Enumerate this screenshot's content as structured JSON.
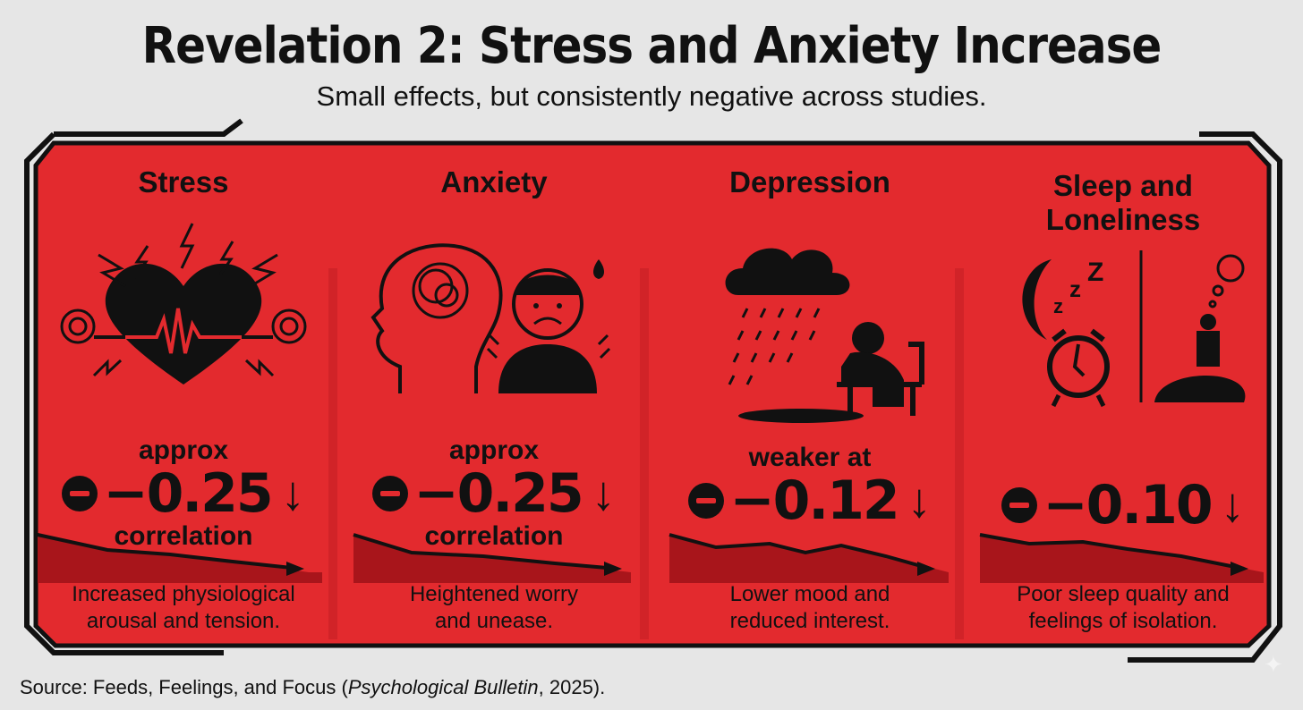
{
  "header": {
    "title": "Revelation 2: Stress and Anxiety Increase",
    "subtitle": "Small effects, but consistently negative across studies."
  },
  "colors": {
    "panel_red": "#e32a2e",
    "dark_red": "#a8151b",
    "ink": "#111111",
    "background": "#e6e6e6"
  },
  "panels": [
    {
      "title": "Stress",
      "icon": "stressed-heart-icon",
      "pre": "approx",
      "value": "−0.25",
      "post": "correlation",
      "trend_icon": "down-arrow-icon",
      "description_lines": [
        "Increased physiological",
        "arousal and tension."
      ]
    },
    {
      "title": "Anxiety",
      "icon": "anxious-person-icon",
      "pre": "approx",
      "value": "−0.25",
      "post": "correlation",
      "trend_icon": "down-arrow-icon",
      "description_lines": [
        "Heightened worry",
        "and unease."
      ]
    },
    {
      "title": "Depression",
      "icon": "rain-cloud-sad-person-icon",
      "pre": "weaker at",
      "value": "−0.12",
      "post": "",
      "trend_icon": "down-arrow-icon",
      "description_lines": [
        "Lower mood and",
        "reduced interest."
      ]
    },
    {
      "title_lines": [
        "Sleep and",
        "Loneliness"
      ],
      "icon": "moon-alarm-isolated-person-icon",
      "pre": "",
      "value": "−0.10",
      "post": "",
      "trend_icon": "down-arrow-icon",
      "description_lines": [
        "Poor sleep quality and",
        "feelings of isolation."
      ]
    }
  ],
  "footer": {
    "source_prefix": "Source: Feeds, Feelings, and Focus (",
    "source_journal": "Psychological Bulletin",
    "source_suffix": ", 2025)."
  }
}
